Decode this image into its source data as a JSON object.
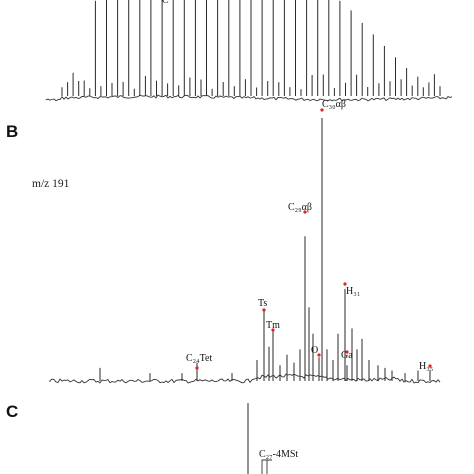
{
  "panels": {
    "A": {
      "panel_label": "",
      "peak_label_fragment": "C"
    },
    "B": {
      "panel_label": "B",
      "ion": "m/z 191",
      "peak_labels": {
        "c30ab": "C₃₀αβ",
        "c29ab": "C₂₉αβ",
        "ts": "Ts",
        "tm": "Tm",
        "c24tet": "C₂₄Tet",
        "h31": "H₃₁",
        "o": "O",
        "ga": "Ga",
        "h35": "H₃₅"
      }
    },
    "C": {
      "panel_label": "C",
      "peak_label": "C₂₇-4MSt"
    }
  },
  "colors": {
    "trace": "#333333",
    "marker": "#d9262b",
    "background": "#ffffff"
  },
  "chart_data": [
    {
      "type": "line",
      "panel": "A",
      "title": "",
      "xlabel": "",
      "ylabel": "",
      "x": [
        1,
        2,
        3,
        4,
        5,
        6,
        7,
        8,
        9,
        10,
        11,
        12,
        13,
        14,
        15,
        16,
        17,
        18,
        19,
        20,
        21,
        22,
        23,
        24,
        25,
        26,
        27,
        28,
        29,
        30,
        31,
        32,
        33,
        34,
        35
      ],
      "series": [
        {
          "values": [
            5,
            20,
            12,
            95,
            100,
            100,
            100,
            100,
            100,
            100,
            100,
            100,
            100,
            100,
            100,
            100,
            100,
            100,
            100,
            100,
            100,
            100,
            100,
            100,
            100,
            95,
            85,
            72,
            60,
            48,
            36,
            25,
            16,
            10,
            6
          ]
        }
      ]
    },
    {
      "type": "line",
      "panel": "B",
      "title": "m/z 191",
      "xlabel": "",
      "ylabel": "",
      "peaks": [
        {
          "label": "C₂₄Tet",
          "x": 197,
          "y": 7
        },
        {
          "label": "Ts",
          "x": 264,
          "y": 27
        },
        {
          "label": "Tm",
          "x": 273,
          "y": 19
        },
        {
          "label": "C₂₉αβ",
          "x": 305,
          "y": 55
        },
        {
          "label": "O",
          "x": 319,
          "y": 9
        },
        {
          "label": "C₃₀αβ",
          "x": 322,
          "y": 100
        },
        {
          "label": "H₃₁",
          "x": 345,
          "y": 35
        },
        {
          "label": "Ga",
          "x": 347,
          "y": 6
        },
        {
          "label": "H₃₅",
          "x": 430,
          "y": 4
        }
      ]
    },
    {
      "type": "line",
      "panel": "C",
      "title": "",
      "xlabel": "",
      "ylabel": "",
      "peaks": [
        {
          "label": "C₂₇-4MSt",
          "x": 248,
          "y": 100
        }
      ]
    }
  ]
}
